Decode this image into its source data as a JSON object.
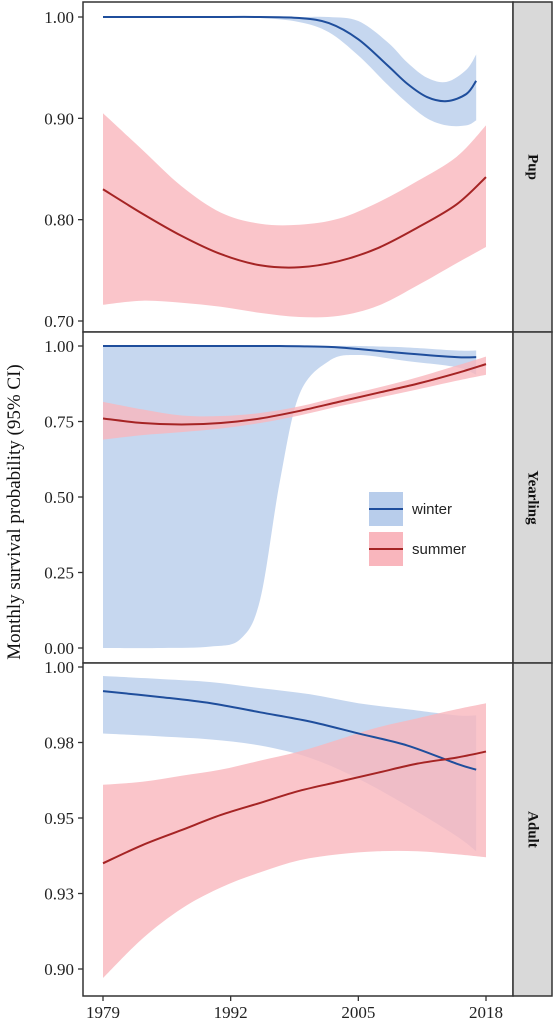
{
  "chart_data": {
    "type": "line",
    "ylabel": "Monthly survival probability (95% CI)",
    "xlabel": "",
    "x_ticks": [
      1979,
      1992,
      2005,
      2018
    ],
    "x_tick_labels": [
      "1979",
      "1992",
      "2005",
      "2018"
    ],
    "xlim": [
      1979,
      2018
    ],
    "legend": {
      "position": "right-middle",
      "entries": [
        {
          "name": "winter",
          "line_color": "#1f4e9c",
          "fill_color": "#b8cdeb"
        },
        {
          "name": "summer",
          "line_color": "#a52424",
          "fill_color": "#f9b6bd"
        }
      ]
    },
    "panels": [
      {
        "strip": "Pup",
        "ylim": [
          0.695,
          1.005
        ],
        "y_ticks": [
          0.7,
          0.8,
          0.9,
          1.0
        ],
        "y_tick_labels": [
          "0.70",
          "0.80",
          "0.90",
          "1.00"
        ],
        "series": [
          {
            "name": "winter",
            "x": [
              1979,
              1985,
              1990,
              1995,
              1999,
              2002,
              2005,
              2008,
              2010,
              2012,
              2014,
              2016,
              2017
            ],
            "y": [
              1.0,
              1.0,
              1.0,
              1.0,
              0.999,
              0.994,
              0.978,
              0.952,
              0.934,
              0.921,
              0.917,
              0.924,
              0.937
            ],
            "lower": [
              1.0,
              1.0,
              1.0,
              0.999,
              0.995,
              0.985,
              0.962,
              0.933,
              0.915,
              0.9,
              0.893,
              0.893,
              0.898
            ],
            "upper": [
              1.0,
              1.0,
              1.0,
              1.0,
              1.0,
              1.0,
              0.996,
              0.975,
              0.955,
              0.94,
              0.936,
              0.948,
              0.963
            ]
          },
          {
            "name": "summer",
            "x": [
              1979,
              1983,
              1987,
              1991,
              1995,
              1999,
              2003,
              2007,
              2011,
              2015,
              2018
            ],
            "y": [
              0.83,
              0.806,
              0.784,
              0.766,
              0.755,
              0.753,
              0.759,
              0.772,
              0.792,
              0.815,
              0.842
            ],
            "lower": [
              0.716,
              0.72,
              0.718,
              0.714,
              0.708,
              0.704,
              0.705,
              0.715,
              0.735,
              0.757,
              0.773
            ],
            "upper": [
              0.905,
              0.869,
              0.833,
              0.807,
              0.796,
              0.795,
              0.801,
              0.817,
              0.838,
              0.862,
              0.893
            ]
          }
        ]
      },
      {
        "strip": "Yearling",
        "ylim": [
          -0.02,
          1.02
        ],
        "y_ticks": [
          0.0,
          0.25,
          0.5,
          0.75,
          1.0
        ],
        "y_tick_labels": [
          "0.00",
          "0.25",
          "0.50",
          "0.75",
          "1.00"
        ],
        "series": [
          {
            "name": "winter",
            "x": [
              1979,
              1985,
              1990,
              1993,
              1995,
              1997,
              1999,
              2002,
              2005,
              2010,
              2015,
              2017
            ],
            "y": [
              1.0,
              1.0,
              1.0,
              1.0,
              1.0,
              1.0,
              0.999,
              0.997,
              0.99,
              0.975,
              0.963,
              0.963
            ],
            "lower": [
              0.0,
              0.0,
              0.005,
              0.03,
              0.16,
              0.55,
              0.84,
              0.95,
              0.97,
              0.95,
              0.93,
              0.905
            ],
            "upper": [
              1.0,
              1.0,
              1.0,
              1.0,
              1.0,
              1.0,
              1.0,
              1.0,
              1.0,
              0.995,
              0.985,
              0.985
            ]
          },
          {
            "name": "summer",
            "x": [
              1979,
              1983,
              1987,
              1991,
              1995,
              1999,
              2003,
              2007,
              2011,
              2015,
              2018
            ],
            "y": [
              0.76,
              0.745,
              0.74,
              0.745,
              0.76,
              0.785,
              0.815,
              0.845,
              0.875,
              0.91,
              0.94
            ],
            "lower": [
              0.69,
              0.705,
              0.715,
              0.727,
              0.745,
              0.77,
              0.8,
              0.828,
              0.856,
              0.885,
              0.905
            ],
            "upper": [
              0.815,
              0.79,
              0.77,
              0.768,
              0.778,
              0.8,
              0.832,
              0.862,
              0.896,
              0.935,
              0.965
            ]
          }
        ]
      },
      {
        "strip": "Adult",
        "ylim": [
          0.895,
          1.0
        ],
        "y_ticks": [
          0.9,
          0.925,
          0.95,
          0.975,
          1.0
        ],
        "y_tick_labels": [
          "0.90",
          "0.93",
          "0.95",
          "0.98",
          "1.00"
        ],
        "series": [
          {
            "name": "winter",
            "x": [
              1979,
              1985,
              1990,
              1995,
              2000,
              2005,
              2010,
              2015,
              2017
            ],
            "y": [
              0.992,
              0.99,
              0.988,
              0.985,
              0.982,
              0.978,
              0.974,
              0.968,
              0.966
            ],
            "lower": [
              0.978,
              0.977,
              0.976,
              0.974,
              0.97,
              0.963,
              0.954,
              0.944,
              0.939
            ],
            "upper": [
              0.997,
              0.996,
              0.995,
              0.993,
              0.991,
              0.988,
              0.986,
              0.984,
              0.984
            ]
          },
          {
            "name": "summer",
            "x": [
              1979,
              1983,
              1987,
              1991,
              1995,
              1999,
              2003,
              2007,
              2011,
              2015,
              2018
            ],
            "y": [
              0.935,
              0.941,
              0.946,
              0.951,
              0.955,
              0.959,
              0.962,
              0.965,
              0.968,
              0.97,
              0.972
            ],
            "lower": [
              0.897,
              0.91,
              0.92,
              0.927,
              0.932,
              0.936,
              0.938,
              0.939,
              0.939,
              0.938,
              0.937
            ],
            "upper": [
              0.961,
              0.962,
              0.964,
              0.966,
              0.969,
              0.972,
              0.976,
              0.98,
              0.983,
              0.986,
              0.988
            ]
          }
        ]
      }
    ]
  }
}
